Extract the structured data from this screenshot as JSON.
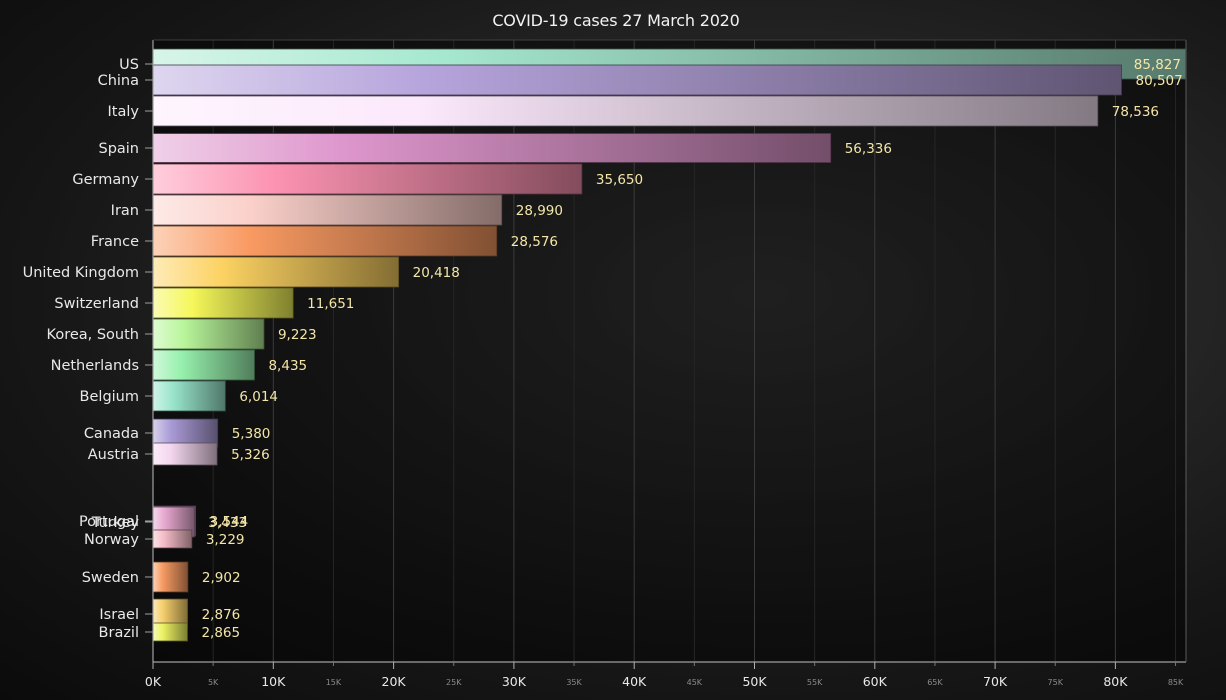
{
  "chart_data": {
    "type": "bar",
    "orientation": "horizontal",
    "title": "COVID-19 cases 27 March 2020",
    "xlim": [
      0,
      86000
    ],
    "grid": true,
    "legend": "none",
    "bars": [
      {
        "label": "US",
        "value": 85827,
        "value_label": "85,827",
        "color": "#a6e8cf"
      },
      {
        "label": "China",
        "value": 80507,
        "value_label": "80,507",
        "color": "#b6a4dc"
      },
      {
        "label": "Italy",
        "value": 78536,
        "value_label": "78,536",
        "color": "#fce9fc"
      },
      {
        "label": "Spain",
        "value": 56336,
        "value_label": "56,336",
        "color": "#de96cc"
      },
      {
        "label": "Germany",
        "value": 35650,
        "value_label": "35,650",
        "color": "#fc93b2"
      },
      {
        "label": "Iran",
        "value": 28990,
        "value_label": "28,990",
        "color": "#fbd0ca"
      },
      {
        "label": "France",
        "value": 28576,
        "value_label": "28,576",
        "color": "#f99a62"
      },
      {
        "label": "United Kingdom",
        "value": 20418,
        "value_label": "20,418",
        "color": "#fcd262"
      },
      {
        "label": "Switzerland",
        "value": 11651,
        "value_label": "11,651",
        "color": "#f5f75a"
      },
      {
        "label": "Korea, South",
        "value": 9223,
        "value_label": "9,223",
        "color": "#b8f59a"
      },
      {
        "label": "Netherlands",
        "value": 8435,
        "value_label": "8,435",
        "color": "#97f0ad"
      },
      {
        "label": "Belgium",
        "value": 6014,
        "value_label": "6,014",
        "color": "#98e4cb"
      },
      {
        "label": "Canada",
        "value": 5380,
        "value_label": "5,380",
        "color": "#a99ad5"
      },
      {
        "label": "Austria",
        "value": 5326,
        "value_label": "5,326",
        "color": "#f3d6ee"
      },
      {
        "label": "Portugal",
        "value": 3544,
        "value_label": "3,544",
        "color": "#d79fd7"
      },
      {
        "label": "Turkey",
        "value": 3433,
        "value_label": "3,433",
        "color": "#e7a8d0"
      },
      {
        "label": "Norway",
        "value": 3229,
        "value_label": "3,229",
        "color": "#f6bcc8"
      },
      {
        "label": "Sweden",
        "value": 2902,
        "value_label": "2,902",
        "color": "#f69a62"
      },
      {
        "label": "Israel",
        "value": 2876,
        "value_label": "2,876",
        "color": "#f6cf6c"
      },
      {
        "label": "Brazil",
        "value": 2865,
        "value_label": "2,865",
        "color": "#ecf263"
      }
    ],
    "xticks_major": [
      {
        "value": 0,
        "label": "0K"
      },
      {
        "value": 10000,
        "label": "10K"
      },
      {
        "value": 20000,
        "label": "20K"
      },
      {
        "value": 30000,
        "label": "30K"
      },
      {
        "value": 40000,
        "label": "40K"
      },
      {
        "value": 50000,
        "label": "50K"
      },
      {
        "value": 60000,
        "label": "60K"
      },
      {
        "value": 70000,
        "label": "70K"
      },
      {
        "value": 80000,
        "label": "80K"
      }
    ],
    "xticks_minor": [
      {
        "value": 5000,
        "label": "5K"
      },
      {
        "value": 15000,
        "label": "15K"
      },
      {
        "value": 25000,
        "label": "25K"
      },
      {
        "value": 35000,
        "label": "35K"
      },
      {
        "value": 45000,
        "label": "45K"
      },
      {
        "value": 55000,
        "label": "55K"
      },
      {
        "value": 65000,
        "label": "65K"
      },
      {
        "value": 75000,
        "label": "75K"
      },
      {
        "value": 85000,
        "label": "85K"
      }
    ],
    "colors": {
      "value_text": "#f3e6a8",
      "category_text": "#e8e8e8",
      "axis": "#9a9a9a",
      "grid": "#3a3a3a"
    }
  }
}
